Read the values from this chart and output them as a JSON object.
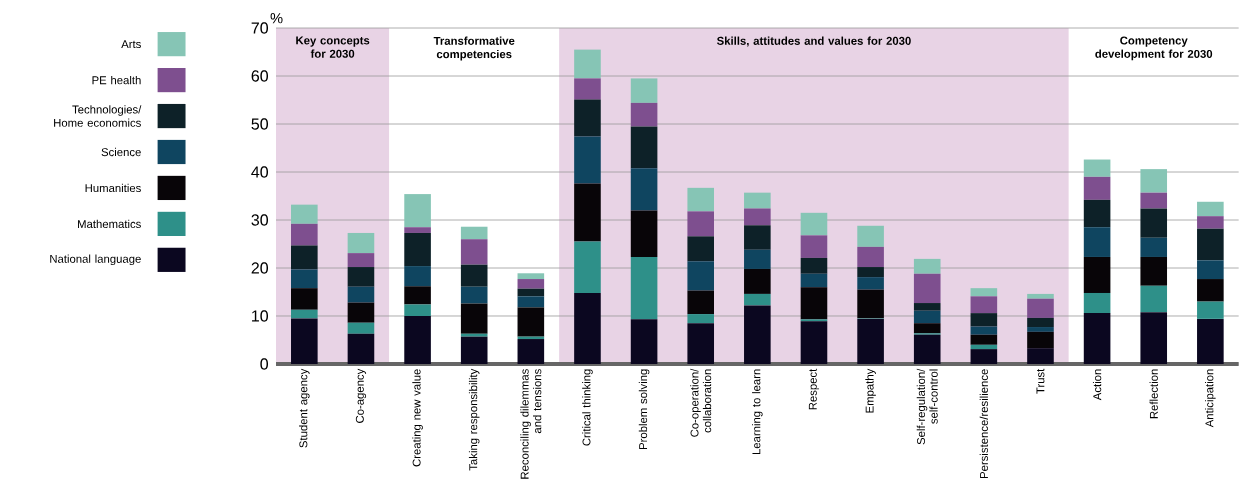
{
  "chart_data": {
    "type": "bar",
    "stacked": true,
    "ylabel": "%",
    "ylim": [
      0,
      70
    ],
    "yticks": [
      0,
      10,
      20,
      30,
      40,
      50,
      60,
      70
    ],
    "grid": "y",
    "legend": "left",
    "categories": [
      "Student agency",
      "Co-agency",
      "Creating new value",
      "Taking responsibility",
      "Reconciling dilemmas and tensions",
      "Critical thinking",
      "Problem solving",
      "Co-operation/ collaboration",
      "Learning to learn",
      "Respect",
      "Empathy",
      "Self-regulation/ self-control",
      "Persistence/resilience",
      "Trust",
      "Action",
      "Reflection",
      "Anticipation"
    ],
    "series": [
      {
        "name": "National language",
        "color": "#0b0720",
        "values": [
          9.5,
          6.3,
          10,
          5.7,
          5.2,
          14.8,
          9.3,
          8.5,
          12.2,
          8.9,
          9.4,
          6.1,
          3.1,
          3.3,
          10.6,
          10.8,
          9.4
        ]
      },
      {
        "name": "Mathematics",
        "color": "#2e9089",
        "values": [
          1.8,
          2.3,
          2.4,
          0.6,
          0.5,
          10.7,
          13.0,
          1.9,
          2.4,
          0.4,
          0.1,
          0.3,
          0.9,
          0,
          4.2,
          5.5,
          3.6
        ]
      },
      {
        "name": "Humanities",
        "color": "#080508",
        "values": [
          4.5,
          4.2,
          3.8,
          6.3,
          6.1,
          12.1,
          9.7,
          4.9,
          5.2,
          6.7,
          6.0,
          2.1,
          2.1,
          3.4,
          7.5,
          6.0,
          4.7
        ]
      },
      {
        "name": "Science",
        "color": "#0f4560",
        "values": [
          3.9,
          3.3,
          4.2,
          3.5,
          2.3,
          9.8,
          8.8,
          6.1,
          4.0,
          2.8,
          2.6,
          2.6,
          1.7,
          1.0,
          6.2,
          4.0,
          3.9
        ]
      },
      {
        "name": "Technologies/ Home economics",
        "color": "#0d2128",
        "values": [
          5.0,
          4.1,
          6.9,
          4.6,
          1.6,
          7.7,
          8.7,
          5.2,
          5.1,
          3.3,
          2.1,
          1.6,
          2.8,
          1.9,
          5.7,
          6.1,
          6.6
        ]
      },
      {
        "name": "PE health",
        "color": "#7e4f8f",
        "values": [
          4.5,
          2.9,
          1.2,
          5.3,
          2.0,
          4.4,
          4.9,
          5.2,
          3.5,
          4.7,
          4.2,
          6.1,
          3.5,
          4.0,
          4.8,
          3.3,
          2.6
        ]
      },
      {
        "name": "Arts",
        "color": "#86c5b5",
        "values": [
          4.0,
          4.2,
          6.9,
          2.6,
          1.2,
          6.0,
          5.1,
          4.9,
          3.3,
          4.7,
          4.4,
          3.1,
          1.7,
          1.0,
          3.6,
          4.9,
          3.0
        ]
      }
    ],
    "bands": [
      {
        "axis": "x",
        "from": "Student agency",
        "to": "Co-agency",
        "label": "Key concepts for 2030",
        "color": "#e8d3e5"
      },
      {
        "axis": "x",
        "from": "Creating new value",
        "to": "Reconciling dilemmas and tensions",
        "label": "Transformative competencies",
        "color": "#ffffff"
      },
      {
        "axis": "x",
        "from": "Critical thinking",
        "to": "Trust",
        "label": "Skills, attitudes and values for 2030",
        "color": "#e8d3e5"
      },
      {
        "axis": "x",
        "from": "Action",
        "to": "Anticipation",
        "label": "Competency development for 2030",
        "color": "#ffffff"
      }
    ]
  }
}
